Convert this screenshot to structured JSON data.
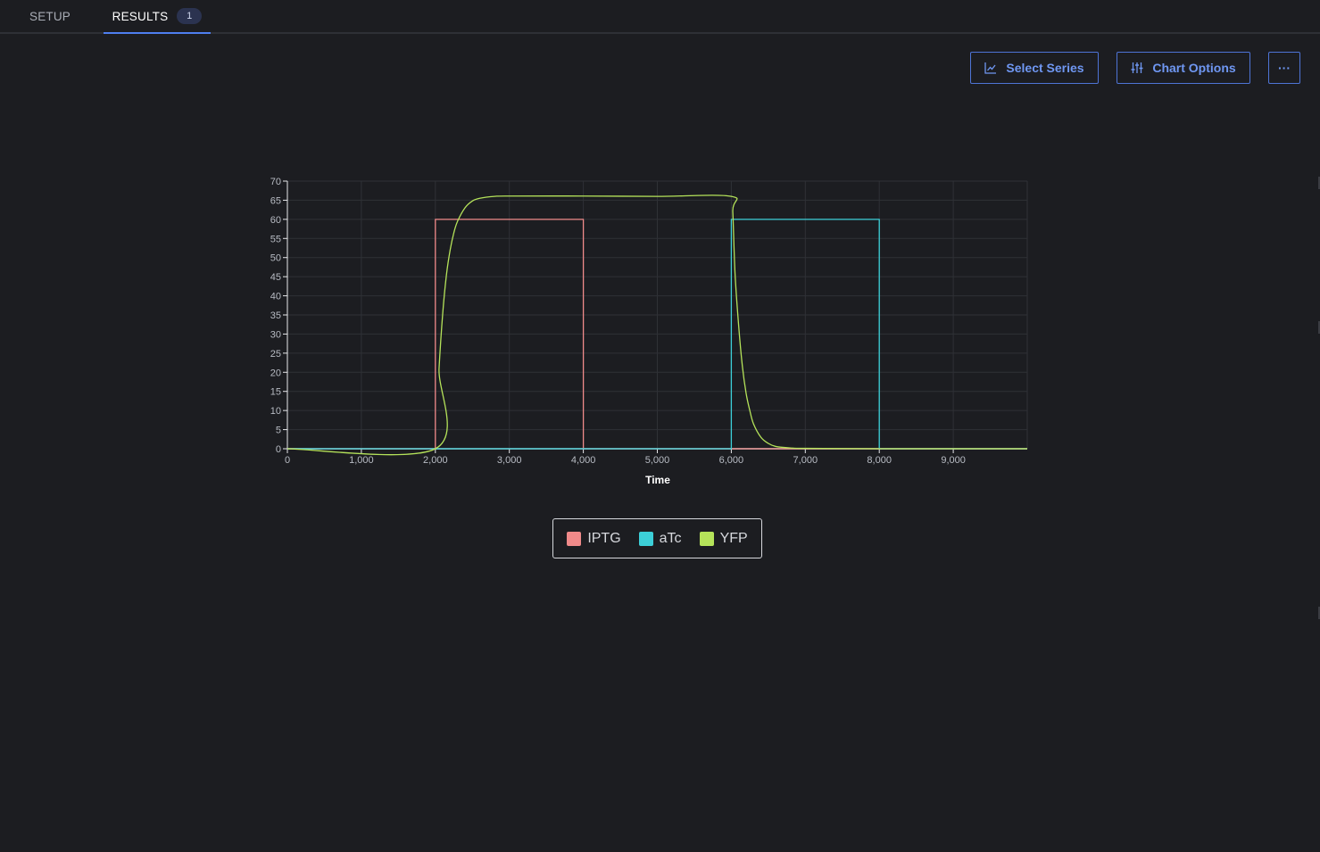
{
  "tabs": [
    {
      "label": "SETUP"
    },
    {
      "label": "RESULTS",
      "badge": "1",
      "active": true
    }
  ],
  "toolbar": {
    "select_series_label": "Select Series",
    "chart_options_label": "Chart Options",
    "more_label": "···"
  },
  "colors": {
    "background": "#1c1d21",
    "accent": "#4f7ff0",
    "iptg": "#f08a8a",
    "atc": "#3ccfd8",
    "yfp": "#b5e35a"
  },
  "chart_data": {
    "type": "line",
    "title": "",
    "xlabel": "Time",
    "ylabel": "",
    "xlim": [
      0,
      10000
    ],
    "ylim": [
      0,
      70
    ],
    "xticks": [
      0,
      1000,
      2000,
      3000,
      4000,
      5000,
      6000,
      7000,
      8000,
      9000
    ],
    "xtick_labels": [
      "0",
      "1,000",
      "2,000",
      "3,000",
      "4,000",
      "5,000",
      "6,000",
      "7,000",
      "8,000",
      "9,000"
    ],
    "yticks": [
      0,
      5,
      10,
      15,
      20,
      25,
      30,
      35,
      40,
      45,
      50,
      55,
      60,
      65,
      70
    ],
    "grid": true,
    "legend_position": "bottom-center",
    "series": [
      {
        "name": "IPTG",
        "color": "#f08a8a",
        "x": [
          0,
          2000,
          2000,
          4000,
          4000,
          10000
        ],
        "y": [
          0,
          0,
          60,
          60,
          0,
          0
        ]
      },
      {
        "name": "aTc",
        "color": "#3ccfd8",
        "x": [
          0,
          6000,
          6000,
          8000,
          8000,
          10000
        ],
        "y": [
          0,
          0,
          60,
          60,
          0,
          0
        ]
      },
      {
        "name": "YFP",
        "color": "#b5e35a",
        "x": [
          0,
          2000,
          2050,
          2100,
          2150,
          2200,
          2250,
          2300,
          2400,
          2500,
          2600,
          2800,
          3000,
          4000,
          5000,
          6000,
          6020,
          6050,
          6100,
          6150,
          6200,
          6250,
          6300,
          6400,
          6500,
          6600,
          6800,
          7000,
          8000,
          10000
        ],
        "y": [
          0,
          0,
          21,
          35.5,
          45.5,
          52,
          56.5,
          59.5,
          63,
          64.8,
          65.5,
          66,
          66.1,
          66.1,
          66,
          66,
          62,
          46,
          32,
          21.5,
          14.5,
          10,
          6.5,
          3,
          1.4,
          0.6,
          0.2,
          0.1,
          0,
          0
        ]
      }
    ]
  }
}
